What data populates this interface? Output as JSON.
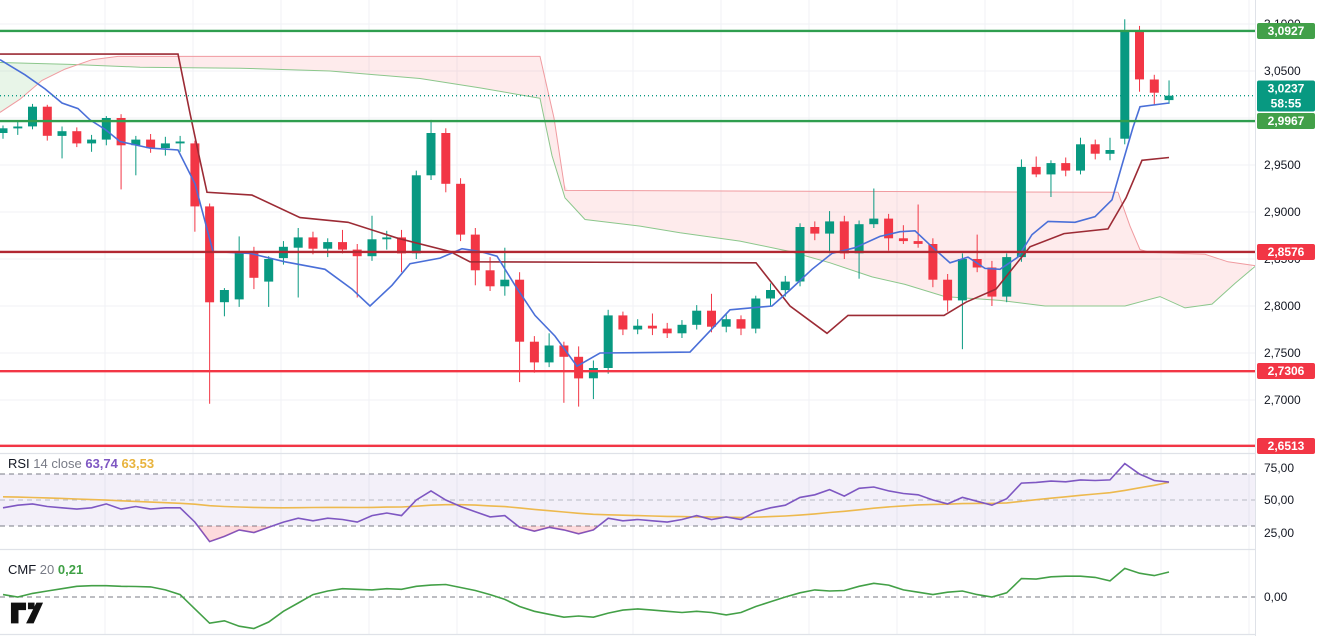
{
  "colors": {
    "up": "#089981",
    "down": "#f23645",
    "level_green": "#2f9e4f",
    "level_red": "#f23645",
    "level_darkred": "#b22833",
    "badge_green": "#42a049",
    "badge_teal": "#089981",
    "badge_red": "#f23645",
    "tenkan_blue": "#4a6fd8",
    "kijun_maroon": "#9c2b35",
    "senkou_a_line": "#8cc78c",
    "senkou_b_line": "#f09ba0",
    "cloud_green": "rgba(76,175,80,0.13)",
    "cloud_pink": "rgba(242,54,69,0.10)",
    "rsi_purple": "#7e57c2",
    "rsi_yellow": "#edb94e",
    "rsi_band": "rgba(126,87,194,0.09)",
    "rsi_oversold_fill": "rgba(242,54,69,0.18)",
    "cmf_green": "#43a047",
    "grid": "#f0f2f6",
    "dash_dark": "#787b86",
    "dash_light": "#b7bac4",
    "separator": "#dfe2e8",
    "axis_text": "#131722"
  },
  "price_scale": {
    "ticks": [
      {
        "label": "3,1000",
        "price": 3.1
      },
      {
        "label": "3,0500",
        "price": 3.05
      },
      {
        "label": "2,9500",
        "price": 2.95
      },
      {
        "label": "2,9000",
        "price": 2.9
      },
      {
        "label": "2,8500",
        "price": 2.85
      },
      {
        "label": "2,8000",
        "price": 2.8
      },
      {
        "label": "2,7500",
        "price": 2.75
      },
      {
        "label": "2,7000",
        "price": 2.7
      }
    ],
    "badges": [
      {
        "label": "3,0927",
        "price": 3.0927,
        "type": "green"
      },
      {
        "label": "3,0237",
        "sub": "58:55",
        "price": 3.0237,
        "type": "teal"
      },
      {
        "label": "2,9967",
        "price": 2.9967,
        "type": "green"
      },
      {
        "label": "2,8576",
        "price": 2.8576,
        "type": "red"
      },
      {
        "label": "2,7306",
        "price": 2.7306,
        "type": "red"
      },
      {
        "label": "2,6513",
        "price": 2.6513,
        "type": "red"
      }
    ],
    "rsi_ticks": [
      {
        "label": "75,00",
        "value": 75
      },
      {
        "label": "50,00",
        "value": 50
      },
      {
        "label": "25,00",
        "value": 25
      }
    ],
    "cmf_ticks": [
      {
        "label": "0,00",
        "value": 0
      }
    ]
  },
  "indicators": {
    "rsi": {
      "title": "RSI",
      "params": "14 close",
      "value_main": "63,74",
      "value_ma": "63,53"
    },
    "cmf": {
      "title": "CMF",
      "params": "20",
      "value": "0,21"
    }
  },
  "chart_data": {
    "type": "candlestick",
    "panes": [
      "price-ichimoku",
      "rsi",
      "cmf"
    ],
    "current_price": 3.0237,
    "countdown": "58:55",
    "levels": [
      {
        "price": 3.0927,
        "style": "green"
      },
      {
        "price": 2.9967,
        "style": "green"
      },
      {
        "price": 2.8576,
        "style": "darkred"
      },
      {
        "price": 2.7306,
        "style": "red"
      },
      {
        "price": 2.6513,
        "style": "red"
      }
    ],
    "candles": [
      [
        2.984,
        2.992,
        2.978,
        2.989
      ],
      [
        2.989,
        2.997,
        2.982,
        2.991
      ],
      [
        2.991,
        3.015,
        2.988,
        3.012
      ],
      [
        3.012,
        3.014,
        2.976,
        2.981
      ],
      [
        2.981,
        2.991,
        2.957,
        2.986
      ],
      [
        2.986,
        2.99,
        2.969,
        2.973
      ],
      [
        2.973,
        2.982,
        2.964,
        2.977
      ],
      [
        2.977,
        3.002,
        2.971,
        3.0
      ],
      [
        3.0,
        3.004,
        2.924,
        2.971
      ],
      [
        2.971,
        2.981,
        2.939,
        2.977
      ],
      [
        2.977,
        2.983,
        2.963,
        2.968
      ],
      [
        2.968,
        2.98,
        2.96,
        2.973
      ],
      [
        2.973,
        2.981,
        2.964,
        2.975
      ],
      [
        2.973,
        2.976,
        2.879,
        2.906
      ],
      [
        2.906,
        2.909,
        2.696,
        2.804
      ],
      [
        2.804,
        2.819,
        2.789,
        2.817
      ],
      [
        2.807,
        2.874,
        2.799,
        2.857
      ],
      [
        2.857,
        2.863,
        2.818,
        2.83
      ],
      [
        2.826,
        2.853,
        2.799,
        2.85
      ],
      [
        2.851,
        2.869,
        2.844,
        2.863
      ],
      [
        2.862,
        2.883,
        2.809,
        2.873
      ],
      [
        2.873,
        2.879,
        2.855,
        2.861
      ],
      [
        2.861,
        2.872,
        2.852,
        2.868
      ],
      [
        2.868,
        2.881,
        2.856,
        2.86
      ],
      [
        2.86,
        2.866,
        2.809,
        2.853
      ],
      [
        2.853,
        2.896,
        2.848,
        2.871
      ],
      [
        2.871,
        2.88,
        2.86,
        2.873
      ],
      [
        2.873,
        2.881,
        2.836,
        2.856
      ],
      [
        2.856,
        2.944,
        2.85,
        2.939
      ],
      [
        2.939,
        2.998,
        2.934,
        2.984
      ],
      [
        2.984,
        2.989,
        2.921,
        2.93
      ],
      [
        2.93,
        2.936,
        2.869,
        2.876
      ],
      [
        2.876,
        2.883,
        2.822,
        2.838
      ],
      [
        2.838,
        2.852,
        2.816,
        2.821
      ],
      [
        2.821,
        2.862,
        2.811,
        2.828
      ],
      [
        2.828,
        2.836,
        2.719,
        2.762
      ],
      [
        2.762,
        2.768,
        2.729,
        2.74
      ],
      [
        2.74,
        2.771,
        2.735,
        2.758
      ],
      [
        2.758,
        2.762,
        2.697,
        2.746
      ],
      [
        2.746,
        2.757,
        2.693,
        2.723
      ],
      [
        2.723,
        2.742,
        2.701,
        2.734
      ],
      [
        2.734,
        2.796,
        2.728,
        2.79
      ],
      [
        2.79,
        2.794,
        2.769,
        2.775
      ],
      [
        2.775,
        2.786,
        2.77,
        2.779
      ],
      [
        2.779,
        2.792,
        2.769,
        2.776
      ],
      [
        2.776,
        2.782,
        2.766,
        2.771
      ],
      [
        2.771,
        2.785,
        2.766,
        2.78
      ],
      [
        2.78,
        2.801,
        2.775,
        2.795
      ],
      [
        2.795,
        2.813,
        2.772,
        2.778
      ],
      [
        2.778,
        2.791,
        2.772,
        2.786
      ],
      [
        2.786,
        2.79,
        2.769,
        2.776
      ],
      [
        2.776,
        2.811,
        2.771,
        2.808
      ],
      [
        2.808,
        2.824,
        2.8,
        2.817
      ],
      [
        2.817,
        2.832,
        2.81,
        2.826
      ],
      [
        2.826,
        2.888,
        2.821,
        2.884
      ],
      [
        2.884,
        2.89,
        2.87,
        2.877
      ],
      [
        2.877,
        2.901,
        2.856,
        2.89
      ],
      [
        2.89,
        2.896,
        2.85,
        2.856
      ],
      [
        2.856,
        2.891,
        2.829,
        2.887
      ],
      [
        2.887,
        2.925,
        2.883,
        2.893
      ],
      [
        2.893,
        2.898,
        2.859,
        2.872
      ],
      [
        2.872,
        2.886,
        2.866,
        2.869
      ],
      [
        2.869,
        2.908,
        2.862,
        2.866
      ],
      [
        2.866,
        2.872,
        2.82,
        2.828
      ],
      [
        2.828,
        2.834,
        2.794,
        2.806
      ],
      [
        2.806,
        2.856,
        2.754,
        2.85
      ],
      [
        2.85,
        2.876,
        2.836,
        2.841
      ],
      [
        2.841,
        2.848,
        2.8,
        2.81
      ],
      [
        2.81,
        2.856,
        2.804,
        2.852
      ],
      [
        2.852,
        2.956,
        2.847,
        2.948
      ],
      [
        2.948,
        2.959,
        2.937,
        2.94
      ],
      [
        2.94,
        2.955,
        2.916,
        2.952
      ],
      [
        2.952,
        2.958,
        2.938,
        2.944
      ],
      [
        2.944,
        2.979,
        2.94,
        2.972
      ],
      [
        2.972,
        2.977,
        2.956,
        2.962
      ],
      [
        2.962,
        2.979,
        2.955,
        2.966
      ],
      [
        2.978,
        3.105,
        2.972,
        3.092
      ],
      [
        3.092,
        3.098,
        3.028,
        3.041
      ],
      [
        3.041,
        3.046,
        3.014,
        3.027
      ],
      [
        3.019,
        3.04,
        3.015,
        3.0237
      ]
    ],
    "ichimoku": {
      "tenkan": [
        [
          0,
          3.062
        ],
        [
          25,
          3.046
        ],
        [
          45,
          3.031
        ],
        [
          62,
          3.016
        ],
        [
          78,
          3.01
        ],
        [
          90,
          2.998
        ],
        [
          105,
          2.988
        ],
        [
          120,
          2.975
        ],
        [
          150,
          2.968
        ],
        [
          178,
          2.966
        ],
        [
          195,
          2.93
        ],
        [
          213,
          2.858
        ],
        [
          250,
          2.856
        ],
        [
          285,
          2.847
        ],
        [
          325,
          2.839
        ],
        [
          352,
          2.818
        ],
        [
          370,
          2.8
        ],
        [
          392,
          2.822
        ],
        [
          410,
          2.845
        ],
        [
          440,
          2.851
        ],
        [
          462,
          2.861
        ],
        [
          480,
          2.858
        ],
        [
          497,
          2.853
        ],
        [
          515,
          2.822
        ],
        [
          535,
          2.79
        ],
        [
          555,
          2.768
        ],
        [
          577,
          2.736
        ],
        [
          600,
          2.75
        ],
        [
          690,
          2.751
        ],
        [
          730,
          2.796
        ],
        [
          772,
          2.8
        ],
        [
          790,
          2.817
        ],
        [
          812,
          2.839
        ],
        [
          832,
          2.856
        ],
        [
          855,
          2.862
        ],
        [
          880,
          2.874
        ],
        [
          900,
          2.879
        ],
        [
          915,
          2.88
        ],
        [
          932,
          2.863
        ],
        [
          950,
          2.846
        ],
        [
          968,
          2.852
        ],
        [
          985,
          2.84
        ],
        [
          1000,
          2.839
        ],
        [
          1018,
          2.852
        ],
        [
          1032,
          2.876
        ],
        [
          1048,
          2.89
        ],
        [
          1075,
          2.889
        ],
        [
          1095,
          2.895
        ],
        [
          1112,
          2.913
        ],
        [
          1122,
          2.95
        ],
        [
          1133,
          2.99
        ],
        [
          1140,
          3.012
        ],
        [
          1169,
          3.016
        ]
      ],
      "kijun": [
        [
          0,
          3.068
        ],
        [
          178,
          3.068
        ],
        [
          190,
          3.005
        ],
        [
          200,
          2.955
        ],
        [
          207,
          2.921
        ],
        [
          252,
          2.918
        ],
        [
          300,
          2.894
        ],
        [
          348,
          2.889
        ],
        [
          398,
          2.872
        ],
        [
          450,
          2.858
        ],
        [
          470,
          2.847
        ],
        [
          756,
          2.846
        ],
        [
          790,
          2.8
        ],
        [
          827,
          2.771
        ],
        [
          848,
          2.79
        ],
        [
          944,
          2.79
        ],
        [
          966,
          2.804
        ],
        [
          996,
          2.818
        ],
        [
          1030,
          2.863
        ],
        [
          1064,
          2.877
        ],
        [
          1108,
          2.882
        ],
        [
          1126,
          2.915
        ],
        [
          1142,
          2.955
        ],
        [
          1169,
          2.958
        ]
      ],
      "senkou_a": [
        [
          0,
          3.059
        ],
        [
          70,
          3.057
        ],
        [
          140,
          3.054
        ],
        [
          240,
          3.053
        ],
        [
          330,
          3.05
        ],
        [
          420,
          3.042
        ],
        [
          480,
          3.032
        ],
        [
          540,
          3.021
        ],
        [
          552,
          2.96
        ],
        [
          565,
          2.915
        ],
        [
          585,
          2.892
        ],
        [
          640,
          2.885
        ],
        [
          680,
          2.878
        ],
        [
          740,
          2.869
        ],
        [
          790,
          2.858
        ],
        [
          830,
          2.846
        ],
        [
          872,
          2.831
        ],
        [
          905,
          2.823
        ],
        [
          945,
          2.81
        ],
        [
          1000,
          2.806
        ],
        [
          1045,
          2.8
        ],
        [
          1090,
          2.8
        ],
        [
          1125,
          2.8
        ],
        [
          1160,
          2.81
        ],
        [
          1185,
          2.798
        ],
        [
          1212,
          2.802
        ],
        [
          1235,
          2.824
        ],
        [
          1255,
          2.842
        ]
      ],
      "senkou_b": [
        [
          0,
          3.006
        ],
        [
          20,
          3.02
        ],
        [
          42,
          3.04
        ],
        [
          65,
          3.052
        ],
        [
          92,
          3.062
        ],
        [
          118,
          3.0655
        ],
        [
          540,
          3.0655
        ],
        [
          554,
          3.0
        ],
        [
          565,
          2.923
        ],
        [
          1118,
          2.921
        ],
        [
          1130,
          2.885
        ],
        [
          1140,
          2.86
        ],
        [
          1150,
          2.857
        ],
        [
          1205,
          2.855
        ],
        [
          1228,
          2.847
        ],
        [
          1255,
          2.843
        ]
      ]
    },
    "rsi_pane": {
      "range": [
        0,
        100
      ],
      "bands": [
        70,
        50,
        30
      ],
      "values": [
        44,
        46,
        47,
        45,
        44,
        43,
        44,
        47,
        43,
        45,
        43,
        44,
        44,
        33,
        18,
        22,
        27,
        25,
        29,
        33,
        36,
        34,
        36,
        35,
        33,
        38,
        40,
        38,
        50,
        57,
        50,
        45,
        41,
        37,
        38,
        29,
        26,
        29,
        27,
        24,
        27,
        36,
        34,
        35,
        34,
        33,
        35,
        38,
        35,
        37,
        35,
        41,
        44,
        46,
        52,
        54,
        58,
        53,
        59,
        60,
        57,
        55,
        54,
        50,
        47,
        52,
        49,
        46,
        51,
        63,
        63.5,
        64.5,
        64,
        65.5,
        65,
        65.5,
        78,
        70,
        65,
        63.74
      ],
      "ma": [
        52.5,
        52.2,
        51.9,
        51.6,
        51.2,
        50.8,
        50.3,
        49.9,
        49.4,
        48.9,
        48.4,
        47.9,
        47.5,
        46.8,
        45.6,
        45.0,
        44.6,
        44.3,
        44.1,
        44.0,
        44.1,
        44.2,
        44.3,
        44.3,
        44.2,
        44.3,
        44.5,
        44.6,
        45.2,
        46.0,
        46.4,
        46.4,
        46.1,
        45.5,
        44.9,
        43.9,
        42.8,
        41.8,
        40.8,
        39.8,
        39.0,
        38.6,
        38.3,
        38.0,
        37.7,
        37.4,
        37.2,
        37.0,
        36.9,
        36.8,
        36.6,
        36.8,
        37.2,
        37.7,
        38.4,
        39.3,
        40.4,
        41.3,
        42.5,
        43.7,
        44.7,
        45.5,
        46.2,
        46.6,
        46.8,
        47.2,
        47.4,
        47.4,
        47.8,
        49.0,
        50.2,
        51.4,
        52.5,
        53.6,
        54.6,
        55.6,
        57.4,
        59.4,
        61.3,
        63.53
      ]
    },
    "cmf_pane": {
      "zero_line": 0,
      "values": [
        0.02,
        0.0,
        0.03,
        0.05,
        0.07,
        0.09,
        0.095,
        0.095,
        0.09,
        0.088,
        0.085,
        0.06,
        0.02,
        -0.1,
        -0.22,
        -0.2,
        -0.245,
        -0.265,
        -0.21,
        -0.12,
        -0.05,
        0.02,
        0.05,
        0.07,
        0.065,
        0.06,
        0.07,
        0.065,
        0.09,
        0.1,
        0.105,
        0.08,
        0.055,
        0.02,
        -0.02,
        -0.08,
        -0.12,
        -0.145,
        -0.17,
        -0.16,
        -0.17,
        -0.135,
        -0.11,
        -0.1,
        -0.11,
        -0.12,
        -0.13,
        -0.12,
        -0.13,
        -0.15,
        -0.13,
        -0.08,
        -0.04,
        0.0,
        0.035,
        0.06,
        0.05,
        0.055,
        0.09,
        0.115,
        0.1,
        0.06,
        0.04,
        0.02,
        0.04,
        0.05,
        0.02,
        0.0,
        0.035,
        0.155,
        0.15,
        0.17,
        0.175,
        0.175,
        0.165,
        0.135,
        0.24,
        0.2,
        0.18,
        0.21
      ]
    }
  }
}
